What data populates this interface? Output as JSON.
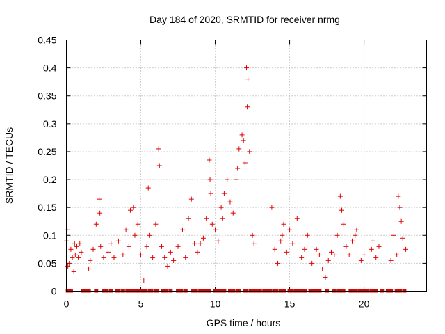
{
  "chart_data": {
    "type": "scatter",
    "title": "Day 184 of 2020, SRMTID for receiver nrmg",
    "xlabel": "GPS time / hours",
    "ylabel": "SRMTID / TECUs",
    "xlim": [
      0,
      24.2
    ],
    "ylim": [
      0,
      0.45
    ],
    "xticks": [
      0,
      5,
      10,
      15,
      20
    ],
    "xtick_labels": [
      "0",
      "5",
      "10",
      "15",
      "20"
    ],
    "yticks": [
      0,
      0.05,
      0.1,
      0.15,
      0.2,
      0.25,
      0.3,
      0.35,
      0.4,
      0.45
    ],
    "ytick_labels": [
      "0",
      "0.05",
      "0.1",
      "0.15",
      "0.2",
      "0.25",
      "0.3",
      "0.35",
      "0.4",
      "0.45"
    ],
    "grid": true,
    "marker": "plus",
    "color": "#e00000",
    "series": [
      {
        "name": "SRMTID",
        "x": [
          0.0,
          0.05,
          0.1,
          0.2,
          0.3,
          0.4,
          0.5,
          0.55,
          0.6,
          0.7,
          0.8,
          0.9,
          1.0,
          1.5,
          1.6,
          1.8,
          2.0,
          2.2,
          2.25,
          2.3,
          2.5,
          2.8,
          3.0,
          3.2,
          3.5,
          3.8,
          4.0,
          4.2,
          4.3,
          4.5,
          4.6,
          4.8,
          5.0,
          5.2,
          5.4,
          5.5,
          5.6,
          5.8,
          6.0,
          6.2,
          6.25,
          6.4,
          6.6,
          6.8,
          7.0,
          7.2,
          7.5,
          7.8,
          8.0,
          8.2,
          8.4,
          8.6,
          8.8,
          9.0,
          9.2,
          9.4,
          9.6,
          9.65,
          9.7,
          9.8,
          10.0,
          10.2,
          10.4,
          10.5,
          10.6,
          10.8,
          11.0,
          11.2,
          11.4,
          11.5,
          11.6,
          11.8,
          11.9,
          12.0,
          12.1,
          12.15,
          12.2,
          12.3,
          12.5,
          12.6,
          13.8,
          14.0,
          14.2,
          14.4,
          14.5,
          14.6,
          14.8,
          15.0,
          15.2,
          15.5,
          15.8,
          16.0,
          16.2,
          16.5,
          16.8,
          17.0,
          17.2,
          17.4,
          17.6,
          17.8,
          18.0,
          18.2,
          18.4,
          18.5,
          18.6,
          18.8,
          19.0,
          19.2,
          19.4,
          19.5,
          19.8,
          20.0,
          20.5,
          20.6,
          20.8,
          21.0,
          21.8,
          22.0,
          22.2,
          22.3,
          22.4,
          22.5,
          22.6,
          22.8
        ],
        "y": [
          0.09,
          0.11,
          0.045,
          0.05,
          0.075,
          0.06,
          0.035,
          0.085,
          0.065,
          0.08,
          0.06,
          0.085,
          0.07,
          0.04,
          0.055,
          0.075,
          0.12,
          0.165,
          0.14,
          0.08,
          0.06,
          0.07,
          0.085,
          0.06,
          0.09,
          0.065,
          0.11,
          0.08,
          0.145,
          0.15,
          0.1,
          0.12,
          0.065,
          0.02,
          0.08,
          0.185,
          0.1,
          0.06,
          0.12,
          0.255,
          0.225,
          0.08,
          0.06,
          0.045,
          0.07,
          0.055,
          0.08,
          0.11,
          0.06,
          0.13,
          0.165,
          0.085,
          0.07,
          0.085,
          0.095,
          0.13,
          0.235,
          0.2,
          0.175,
          0.12,
          0.11,
          0.09,
          0.15,
          0.13,
          0.175,
          0.2,
          0.16,
          0.14,
          0.2,
          0.22,
          0.255,
          0.28,
          0.27,
          0.23,
          0.4,
          0.33,
          0.38,
          0.25,
          0.1,
          0.085,
          0.15,
          0.075,
          0.05,
          0.09,
          0.1,
          0.12,
          0.07,
          0.11,
          0.085,
          0.13,
          0.06,
          0.075,
          0.1,
          0.05,
          0.075,
          0.065,
          0.04,
          0.025,
          0.055,
          0.07,
          0.065,
          0.1,
          0.17,
          0.145,
          0.12,
          0.08,
          0.065,
          0.09,
          0.1,
          0.11,
          0.055,
          0.065,
          0.075,
          0.09,
          0.06,
          0.08,
          0.055,
          0.1,
          0.065,
          0.17,
          0.15,
          0.125,
          0.095,
          0.075
        ]
      }
    ],
    "zero_markers_x": [
      0.1,
      0.3,
      1.1,
      1.3,
      1.5,
      2.0,
      2.5,
      2.7,
      3.0,
      3.4,
      3.5,
      3.8,
      4.1,
      4.3,
      4.5,
      4.7,
      4.9,
      5.0,
      5.3,
      5.6,
      5.7,
      6.0,
      6.1,
      6.5,
      6.7,
      7.0,
      7.5,
      7.7,
      8.0,
      8.5,
      8.7,
      9.0,
      9.1,
      9.4,
      9.6,
      10.0,
      10.2,
      10.4,
      10.6,
      11.0,
      11.2,
      11.5,
      11.6,
      12.0,
      12.1,
      12.4,
      12.6,
      12.8,
      13.0,
      13.3,
      13.5,
      13.7,
      14.0,
      14.1,
      14.4,
      14.6,
      15.0,
      15.1,
      15.4,
      15.6,
      15.8,
      16.0,
      16.4,
      16.6,
      16.8,
      17.0,
      17.5,
      18.0,
      18.3,
      18.6,
      19.1,
      19.4,
      19.7,
      20.0,
      20.2,
      20.5,
      20.6,
      20.8,
      21.2,
      21.6,
      21.8,
      22.2,
      22.4,
      22.7
    ]
  }
}
